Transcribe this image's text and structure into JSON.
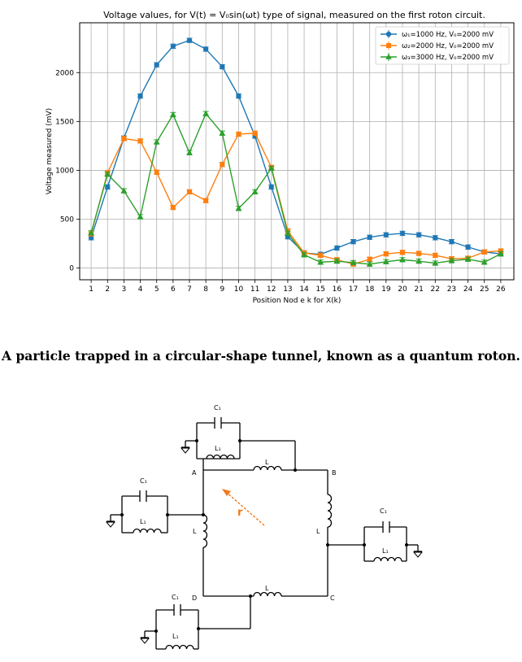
{
  "chart_data": {
    "type": "line",
    "title": "Voltage values, for V(t) = V₀sin(ωt) type of signal, measured on the first roton circuit.",
    "xlabel": "Position Nod e k for X(k)",
    "ylabel": "Voltage measured (mV)",
    "xlim": [
      0.3,
      26.8
    ],
    "ylim": [
      -120,
      2510
    ],
    "yticks": [
      0,
      500,
      1000,
      1500,
      2000
    ],
    "grid": true,
    "legend_position": "top-right",
    "x": [
      1,
      2,
      3,
      4,
      5,
      6,
      7,
      8,
      9,
      10,
      11,
      12,
      13,
      14,
      15,
      16,
      17,
      18,
      19,
      20,
      21,
      22,
      23,
      24,
      25,
      26
    ],
    "series": [
      {
        "name": "ω₁=1000 Hz, V₀=2000 mV",
        "color": "#1f77b4",
        "marker": "circle",
        "values": [
          310,
          830,
          1330,
          1760,
          2080,
          2270,
          2330,
          2240,
          2060,
          1760,
          1350,
          830,
          320,
          155,
          140,
          205,
          270,
          315,
          340,
          355,
          340,
          310,
          270,
          215,
          165,
          145
        ],
        "err": 22
      },
      {
        "name": "ω₂=2000 Hz, V₀=2000 mV",
        "color": "#ff7f0e",
        "marker": "square",
        "values": [
          350,
          975,
          1325,
          1300,
          980,
          620,
          780,
          690,
          1060,
          1370,
          1380,
          1030,
          380,
          155,
          130,
          85,
          40,
          90,
          145,
          160,
          150,
          130,
          95,
          100,
          165,
          175
        ],
        "err": 22
      },
      {
        "name": "ω₃=3000 Hz, V₀=2000 mV",
        "color": "#2ca02c",
        "marker": "triangle",
        "values": [
          360,
          960,
          790,
          525,
          1290,
          1570,
          1180,
          1580,
          1380,
          610,
          780,
          1020,
          355,
          135,
          60,
          70,
          55,
          40,
          65,
          85,
          70,
          50,
          75,
          90,
          60,
          145
        ],
        "err": 22
      }
    ]
  },
  "caption": "A particle trapped in a circular-shape tunnel, known as a quantum roton.",
  "circuit": {
    "node_a": "A",
    "node_b": "B",
    "node_c": "C",
    "node_d": "D",
    "inductor_label": "L",
    "small_inductor_label": "L₁",
    "capacitor_label": "C₁",
    "vector_label": "r",
    "vector_color": "#f07a1a"
  }
}
